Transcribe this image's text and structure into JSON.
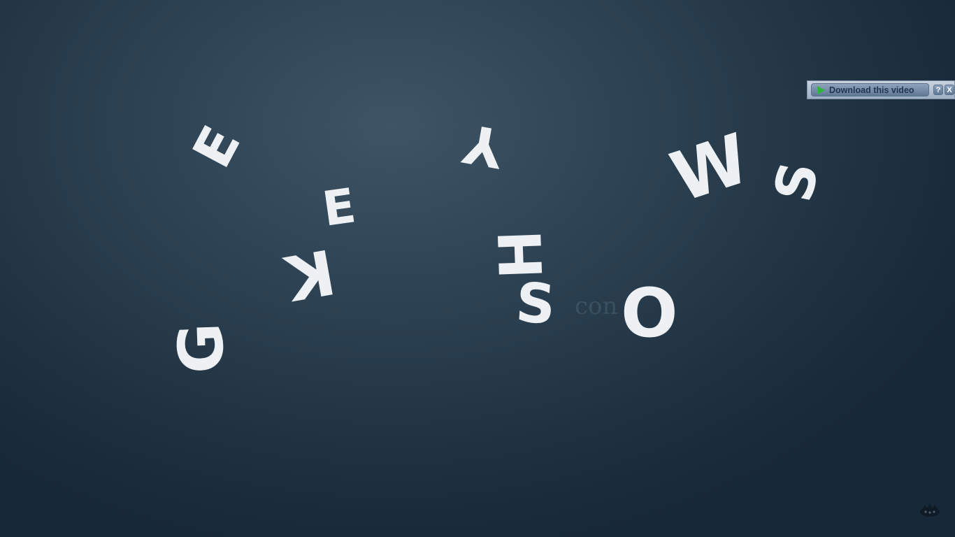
{
  "letters": [
    {
      "id": "E1",
      "char": "E"
    },
    {
      "id": "Y",
      "char": "Y"
    },
    {
      "id": "W",
      "char": "W"
    },
    {
      "id": "S1",
      "char": "S"
    },
    {
      "id": "E2",
      "char": "E"
    },
    {
      "id": "H",
      "char": "H"
    },
    {
      "id": "K",
      "char": "K"
    },
    {
      "id": "S2",
      "char": "S"
    },
    {
      "id": "O",
      "char": "O"
    },
    {
      "id": "G",
      "char": "G"
    }
  ],
  "faint_text": "con",
  "download_overlay": {
    "label": "Download this video",
    "help_label": "?",
    "close_label": "X",
    "play_icon": "play-icon",
    "play_icon_color": "#2fb63a"
  },
  "corner_logo": {
    "icon": "watermark-logo-icon"
  },
  "colors": {
    "background": "#2d4252",
    "letters": "#eef1f4"
  }
}
